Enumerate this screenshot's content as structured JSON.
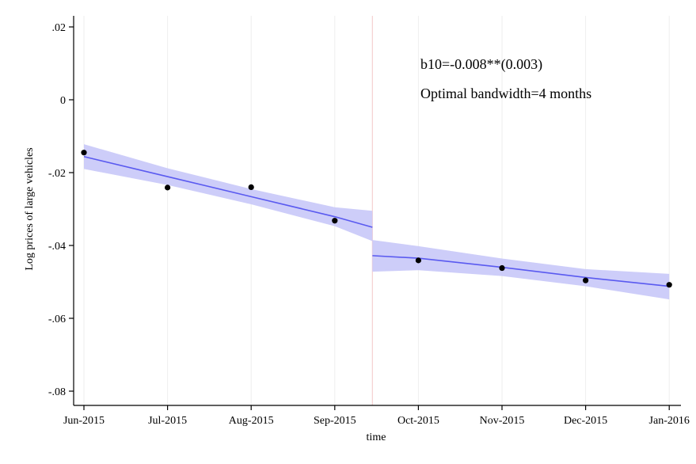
{
  "chart_data": {
    "type": "line",
    "xlabel": "time",
    "ylabel": "Log prices of large vehicles",
    "x_tick_labels": [
      "Jun-2015",
      "Jul-2015",
      "Aug-2015",
      "Sep-2015",
      "Oct-2015",
      "Nov-2015",
      "Dec-2015",
      "Jan-2016"
    ],
    "y_ticks": [
      0.02,
      0,
      -0.02,
      -0.04,
      -0.06,
      -0.08
    ],
    "y_tick_labels": [
      ".02",
      "0",
      "-.02",
      "-.04",
      "-.06",
      "-.08"
    ],
    "ylim": [
      -0.082,
      0.023
    ],
    "xlim": [
      0,
      7
    ],
    "cutoff": 3.45,
    "grid": "vertical",
    "annotations": [
      "b10=-0.008**(0.003)",
      "Optimal bandwidth=4 months"
    ],
    "scatter_points": [
      {
        "x": 0,
        "y": -0.0145
      },
      {
        "x": 1,
        "y": -0.0241
      },
      {
        "x": 2,
        "y": -0.024
      },
      {
        "x": 3,
        "y": -0.0332
      },
      {
        "x": 4,
        "y": -0.0441
      },
      {
        "x": 5,
        "y": -0.0462
      },
      {
        "x": 6,
        "y": -0.0496
      },
      {
        "x": 7,
        "y": -0.0508
      }
    ],
    "fit_segments": [
      {
        "side": "left",
        "x": [
          0,
          1,
          2,
          3,
          3.45
        ],
        "y": [
          -0.0156,
          -0.0211,
          -0.0266,
          -0.0321,
          -0.035
        ],
        "ci_low": [
          -0.019,
          -0.0234,
          -0.0287,
          -0.0347,
          -0.0388
        ],
        "ci_high": [
          -0.0122,
          -0.0188,
          -0.0245,
          -0.0295,
          -0.0305
        ]
      },
      {
        "side": "right",
        "x": [
          3.45,
          4,
          5,
          6,
          7
        ],
        "y": [
          -0.0428,
          -0.0435,
          -0.046,
          -0.0488,
          -0.0512
        ],
        "ci_low": [
          -0.0472,
          -0.0468,
          -0.0484,
          -0.0512,
          -0.0548
        ],
        "ci_high": [
          -0.0385,
          -0.0402,
          -0.0436,
          -0.0465,
          -0.0478
        ]
      }
    ],
    "colors": {
      "fit_line": "#5a5af0",
      "ci_band": "#c8c8f8",
      "points": "#000000",
      "grid": "#eeeeee",
      "cutoff_line": "#f5d0d0",
      "axis": "#000000"
    }
  }
}
